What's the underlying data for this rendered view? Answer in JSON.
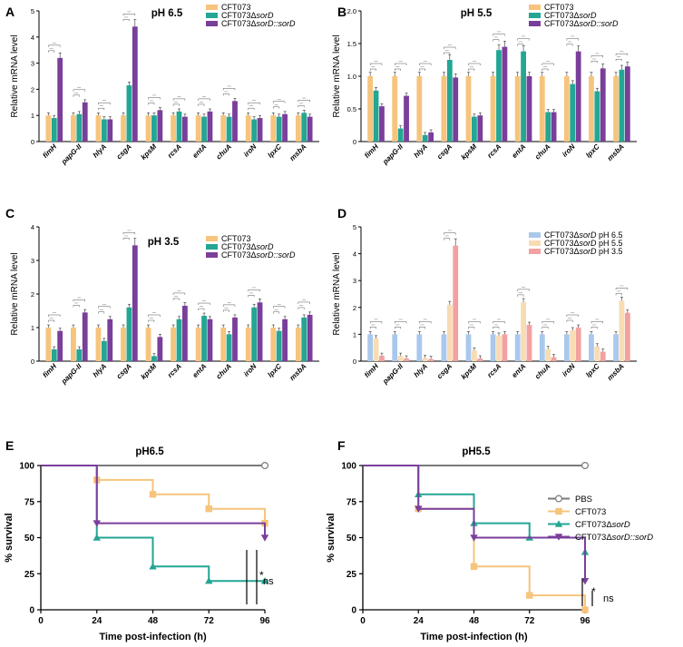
{
  "colors": {
    "orange": "#f6c47d",
    "teal": "#23a693",
    "purple": "#7a3e9b",
    "blue": "#a9c8ec",
    "cream": "#f7dcb4",
    "salmon": "#f2a1a0",
    "gray": "#7a7a7a"
  },
  "sig_label": "****",
  "chart_data": [
    {
      "panel": "A",
      "type": "bar",
      "title": "pH 6.5",
      "ylabel": "Relative mRNA level",
      "ylim": [
        0,
        5
      ],
      "yticks": [
        "0",
        "1",
        "2",
        "3",
        "4",
        "5"
      ],
      "categories": [
        "fimH",
        "papG-II",
        "hlyA",
        "csgA",
        "kpsM",
        "rcsA",
        "entA",
        "chuA",
        "iroN",
        "lpxC",
        "msbA"
      ],
      "legend": [
        {
          "pre": "CFT073",
          "ital": "",
          "post": ""
        },
        {
          "pre": "CFT073Δ",
          "ital": "sorD",
          "post": ""
        },
        {
          "pre": "CFT073Δ",
          "ital": "sorD::sorD",
          "post": ""
        }
      ],
      "series": [
        {
          "name": "CFT073",
          "color": "orange",
          "values": [
            1,
            1,
            1,
            1,
            1,
            1,
            1,
            1,
            1,
            1,
            1
          ]
        },
        {
          "name": "CFT073ΔsorD",
          "color": "teal",
          "values": [
            0.9,
            1.05,
            0.85,
            2.15,
            1.0,
            1.15,
            0.95,
            0.95,
            0.85,
            0.95,
            1.1
          ]
        },
        {
          "name": "CFT073ΔsorD::sorD",
          "color": "purple",
          "values": [
            3.2,
            1.5,
            0.85,
            4.4,
            1.2,
            0.95,
            1.15,
            1.55,
            0.9,
            1.05,
            0.95
          ]
        }
      ]
    },
    {
      "panel": "B",
      "type": "bar",
      "title": "pH 5.5",
      "ylabel": "Relative mRNA level",
      "ylim": [
        0,
        2.0
      ],
      "yticks": [
        "0",
        "0.5",
        "1.0",
        "1.5",
        "2.0"
      ],
      "categories": [
        "fimH",
        "papG-II",
        "hlyA",
        "csgA",
        "kpsM",
        "rcsA",
        "entA",
        "chuA",
        "iroN",
        "lpxC",
        "msbA"
      ],
      "legend": [
        {
          "pre": "CFT073",
          "ital": "",
          "post": ""
        },
        {
          "pre": "CFT073Δ",
          "ital": "sorD",
          "post": ""
        },
        {
          "pre": "CFT073Δ",
          "ital": "sorD::sorD",
          "post": ""
        }
      ],
      "series": [
        {
          "name": "CFT073",
          "color": "orange",
          "values": [
            1,
            1,
            1,
            1,
            1,
            1,
            1,
            1,
            1,
            1,
            1
          ]
        },
        {
          "name": "CFT073ΔsorD",
          "color": "teal",
          "values": [
            0.78,
            0.2,
            0.1,
            1.25,
            0.38,
            1.4,
            1.38,
            0.45,
            0.88,
            0.77,
            1.1
          ]
        },
        {
          "name": "CFT073ΔsorD::sorD",
          "color": "purple",
          "values": [
            0.54,
            0.7,
            0.14,
            0.98,
            0.4,
            1.45,
            1.0,
            0.45,
            1.38,
            1.12,
            1.15
          ]
        }
      ]
    },
    {
      "panel": "C",
      "type": "bar",
      "title": "pH 3.5",
      "ylabel": "Relative mRNA level",
      "ylim": [
        0,
        4
      ],
      "yticks": [
        "0",
        "1",
        "2",
        "3",
        "4"
      ],
      "categories": [
        "fimH",
        "papG-II",
        "hlyA",
        "csgA",
        "kpsM",
        "rcsA",
        "entA",
        "chuA",
        "iroN",
        "lpxC",
        "msbA"
      ],
      "legend": [
        {
          "pre": "CFT073",
          "ital": "",
          "post": ""
        },
        {
          "pre": "CFT073Δ",
          "ital": "sorD",
          "post": ""
        },
        {
          "pre": "CFT073Δ",
          "ital": "sorD::sorD",
          "post": ""
        }
      ],
      "series": [
        {
          "name": "CFT073",
          "color": "orange",
          "values": [
            1,
            1,
            1,
            1,
            1,
            1,
            1,
            1,
            1,
            1,
            1
          ]
        },
        {
          "name": "CFT073ΔsorD",
          "color": "teal",
          "values": [
            0.35,
            0.35,
            0.6,
            1.6,
            0.15,
            1.25,
            1.35,
            0.8,
            1.6,
            0.9,
            1.3
          ]
        },
        {
          "name": "CFT073ΔsorD::sorD",
          "color": "purple",
          "values": [
            0.9,
            1.45,
            1.25,
            3.45,
            0.72,
            1.65,
            1.25,
            1.3,
            1.75,
            1.25,
            1.38
          ]
        }
      ]
    },
    {
      "panel": "D",
      "type": "bar",
      "title": "",
      "ylabel": "Relative mRNA level",
      "ylim": [
        0,
        5
      ],
      "yticks": [
        "0",
        "1",
        "2",
        "3",
        "4",
        "5"
      ],
      "categories": [
        "fimH",
        "papG-II",
        "hlyA",
        "csgA",
        "kpsM",
        "rcsA",
        "entA",
        "chuA",
        "iroN",
        "lpxC",
        "msbA"
      ],
      "legend": [
        {
          "pre": "CFT073Δ",
          "ital": "sorD",
          "post": " pH 6.5"
        },
        {
          "pre": "CFT073Δ",
          "ital": "sorD",
          "post": " pH 5.5"
        },
        {
          "pre": "CFT073Δ",
          "ital": "sorD",
          "post": " pH 3.5"
        }
      ],
      "series": [
        {
          "name": "CFT073ΔsorD pH 6.5",
          "color": "blue",
          "values": [
            1,
            1,
            1,
            1,
            1,
            1,
            1,
            1,
            1,
            1,
            1
          ]
        },
        {
          "name": "CFT073ΔsorD pH 5.5",
          "color": "cream",
          "values": [
            0.85,
            0.2,
            0.12,
            2.1,
            0.4,
            0.95,
            2.2,
            0.45,
            1.15,
            0.55,
            2.25
          ]
        },
        {
          "name": "CFT073ΔsorD pH 3.5",
          "color": "salmon",
          "values": [
            0.2,
            0.1,
            0.08,
            4.3,
            0.1,
            1.0,
            1.35,
            0.15,
            1.25,
            0.35,
            1.8
          ]
        }
      ]
    },
    {
      "panel": "E",
      "type": "line",
      "title": "pH6.5",
      "xlabel": "Time post-infection (h)",
      "ylabel": "% survival",
      "xlim": [
        0,
        96
      ],
      "ylim": [
        0,
        100
      ],
      "xticks": [
        "0",
        "24",
        "48",
        "72",
        "96"
      ],
      "yticks": [
        "0",
        "25",
        "50",
        "75",
        "100"
      ],
      "series": [
        {
          "name": "PBS",
          "color": "gray",
          "marker": "circle",
          "points": [
            [
              0,
              100
            ],
            [
              96,
              100
            ]
          ]
        },
        {
          "name": "CFT073",
          "color": "orange",
          "marker": "square",
          "points": [
            [
              0,
              100
            ],
            [
              24,
              90
            ],
            [
              48,
              80
            ],
            [
              72,
              70
            ],
            [
              96,
              60
            ]
          ]
        },
        {
          "name": "CFT073ΔsorD",
          "color": "teal",
          "marker": "triangle",
          "points": [
            [
              0,
              100
            ],
            [
              24,
              50
            ],
            [
              48,
              30
            ],
            [
              72,
              20
            ],
            [
              96,
              20
            ]
          ]
        },
        {
          "name": "CFT073ΔsorD::sorD",
          "color": "purple",
          "marker": "tridown",
          "points": [
            [
              0,
              100
            ],
            [
              24,
              60
            ],
            [
              96,
              50
            ]
          ]
        }
      ],
      "annotations": [
        "*",
        "ns"
      ]
    },
    {
      "panel": "F",
      "type": "line",
      "title": "pH5.5",
      "xlabel": "Time post-infection (h)",
      "ylabel": "% survival",
      "xlim": [
        0,
        96
      ],
      "ylim": [
        0,
        100
      ],
      "xticks": [
        "0",
        "24",
        "48",
        "72",
        "96"
      ],
      "yticks": [
        "0",
        "25",
        "50",
        "75",
        "100"
      ],
      "legend": [
        {
          "pre": "PBS",
          "ital": "",
          "post": ""
        },
        {
          "pre": "CFT073",
          "ital": "",
          "post": ""
        },
        {
          "pre": "CFT073Δ",
          "ital": "sorD",
          "post": ""
        },
        {
          "pre": "CFT073Δ",
          "ital": "sorD::sorD",
          "post": ""
        }
      ],
      "series": [
        {
          "name": "PBS",
          "color": "gray",
          "marker": "circle",
          "points": [
            [
              0,
              100
            ],
            [
              96,
              100
            ]
          ]
        },
        {
          "name": "CFT073",
          "color": "orange",
          "marker": "square",
          "points": [
            [
              0,
              100
            ],
            [
              24,
              70
            ],
            [
              48,
              30
            ],
            [
              72,
              10
            ],
            [
              96,
              0
            ]
          ]
        },
        {
          "name": "CFT073ΔsorD",
          "color": "teal",
          "marker": "triangle",
          "points": [
            [
              0,
              100
            ],
            [
              24,
              80
            ],
            [
              48,
              60
            ],
            [
              72,
              50
            ],
            [
              96,
              40
            ]
          ]
        },
        {
          "name": "CFT073ΔsorD::sorD",
          "color": "purple",
          "marker": "tridown",
          "points": [
            [
              0,
              100
            ],
            [
              24,
              70
            ],
            [
              48,
              50
            ],
            [
              96,
              20
            ]
          ]
        }
      ],
      "annotations": [
        "*",
        "ns"
      ]
    }
  ]
}
